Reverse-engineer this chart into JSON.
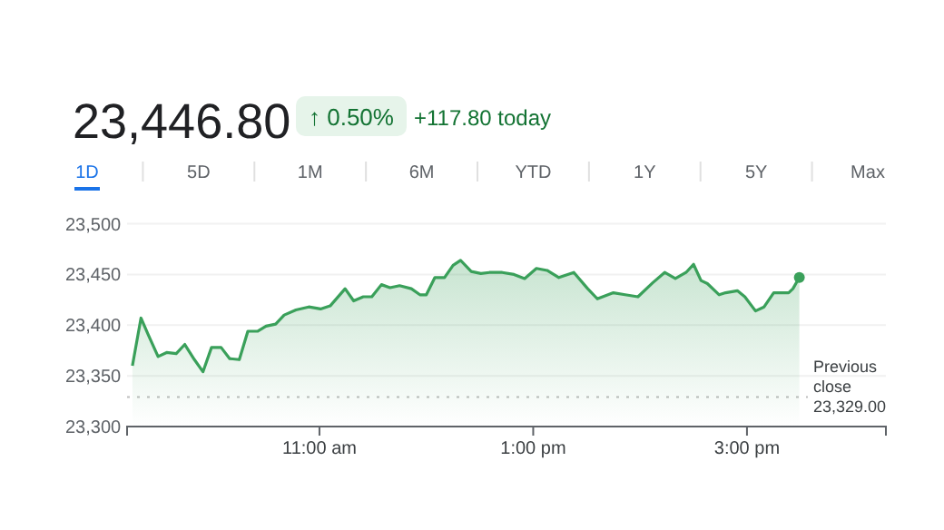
{
  "chart_data": {
    "type": "area",
    "annotations": [
      "23,446.80",
      "↑ 0.50%",
      "+117.80 today",
      "1D",
      "5D",
      "1M",
      "6M",
      "YTD",
      "1Y",
      "5Y",
      "Max"
    ],
    "x": [
      9.25,
      9.33,
      9.4,
      9.49,
      9.57,
      9.66,
      9.74,
      9.83,
      9.91,
      9.99,
      10.08,
      10.16,
      10.25,
      10.33,
      10.42,
      10.5,
      10.59,
      10.67,
      10.78,
      10.9,
      11.01,
      11.1,
      11.24,
      11.32,
      11.41,
      11.49,
      11.58,
      11.66,
      11.75,
      11.86,
      11.94,
      12.0,
      12.08,
      12.17,
      12.25,
      12.32,
      12.42,
      12.51,
      12.59,
      12.71,
      12.82,
      12.92,
      13.03,
      13.13,
      13.24,
      13.38,
      13.51,
      13.6,
      13.75,
      13.86,
      13.98,
      14.12,
      14.23,
      14.33,
      14.43,
      14.5,
      14.57,
      14.63,
      14.74,
      14.8,
      14.91,
      14.98,
      15.08,
      15.16,
      15.25,
      15.39,
      15.43,
      15.49
    ],
    "series": [
      {
        "color": "#3aa05a",
        "values": [
          23360,
          23407,
          23390,
          23369,
          23373,
          23372,
          23381,
          23366,
          23354,
          23378,
          23378,
          23367,
          23366,
          23394,
          23394,
          23399,
          23401,
          23410,
          23415,
          23418,
          23416,
          23419,
          23436,
          23424,
          23428,
          23428,
          23440,
          23437,
          23439,
          23436,
          23430,
          23430,
          23447,
          23447,
          23459,
          23464,
          23453,
          23451,
          23452,
          23452,
          23450,
          23446,
          23456,
          23454,
          23447,
          23452,
          23436,
          23426,
          23432,
          23430,
          23428,
          23442,
          23452,
          23446,
          23452,
          23460,
          23444,
          23441,
          23430,
          23432,
          23434,
          23428,
          23414,
          23418,
          23432,
          23432,
          23436,
          23447
        ]
      }
    ],
    "xlim": [
      9.2,
      16.3
    ],
    "ylim": [
      23300,
      23500
    ],
    "xticks": [
      {
        "value": 11,
        "label": "11:00 am"
      },
      {
        "value": 13,
        "label": "1:00 pm"
      },
      {
        "value": 15,
        "label": "3:00 pm"
      }
    ],
    "yticks": [
      {
        "value": 23300,
        "label": "23,300"
      },
      {
        "value": 23350,
        "label": "23,350"
      },
      {
        "value": 23400,
        "label": "23,400"
      },
      {
        "value": 23450,
        "label": "23,450"
      },
      {
        "value": 23500,
        "label": "23,500"
      }
    ],
    "grid": "y",
    "ref_lines": [
      {
        "axis": "y",
        "value": 23329,
        "label": "Previous close 23,329.00",
        "line_style": "dotted",
        "color": "#bdbdbd"
      }
    ]
  }
}
